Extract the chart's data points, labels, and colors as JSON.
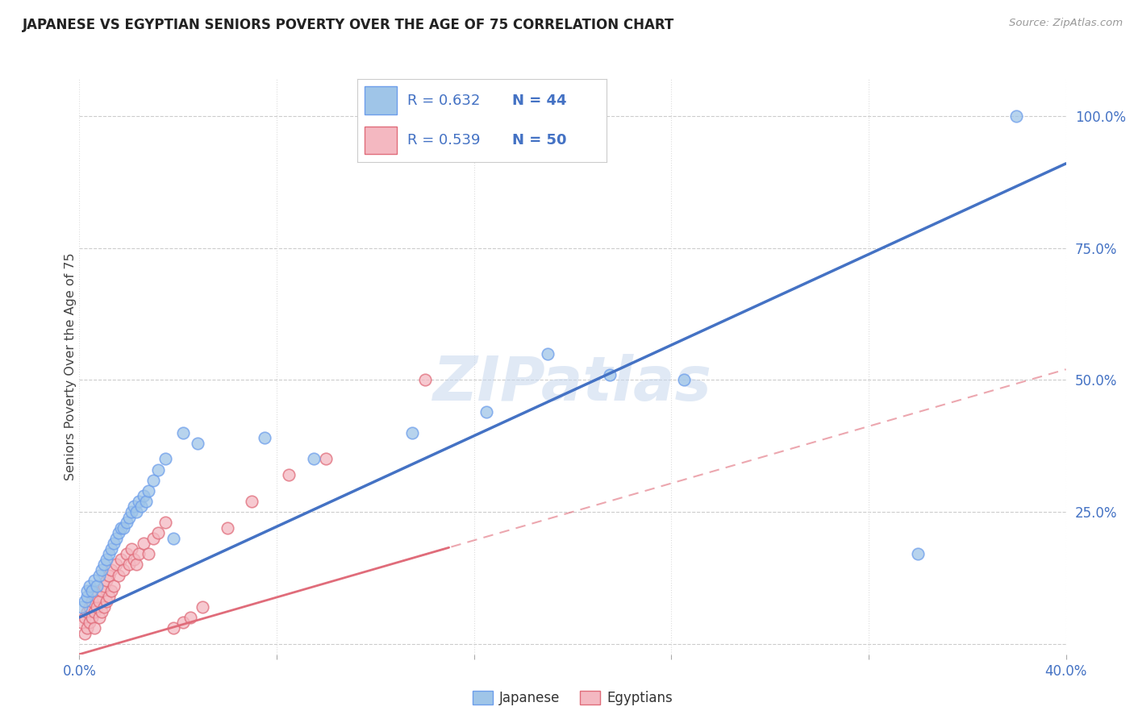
{
  "title": "JAPANESE VS EGYPTIAN SENIORS POVERTY OVER THE AGE OF 75 CORRELATION CHART",
  "source": "Source: ZipAtlas.com",
  "ylabel": "Seniors Poverty Over the Age of 75",
  "xlim": [
    0.0,
    0.4
  ],
  "ylim": [
    -0.02,
    1.07
  ],
  "xtick_positions": [
    0.0,
    0.08,
    0.16,
    0.24,
    0.32,
    0.4
  ],
  "xtick_labels": [
    "0.0%",
    "",
    "",
    "",
    "",
    "40.0%"
  ],
  "ytick_vals_right": [
    1.0,
    0.75,
    0.5,
    0.25,
    0.0
  ],
  "ytick_labels_right": [
    "100.0%",
    "75.0%",
    "50.0%",
    "25.0%",
    ""
  ],
  "japanese_R": "0.632",
  "japanese_N": "44",
  "egyptian_R": "0.539",
  "egyptian_N": "50",
  "japanese_color": "#9fc5e8",
  "egyptian_color": "#f4b8c1",
  "japanese_edge_color": "#6d9eeb",
  "egyptian_edge_color": "#e06c7a",
  "japanese_line_color": "#4472c4",
  "egyptian_line_color": "#e06c7a",
  "watermark": "ZIPatlas",
  "jp_line_intercept": 0.05,
  "jp_line_slope": 2.15,
  "eg_line_intercept": -0.02,
  "eg_line_slope": 1.35,
  "japanese_x": [
    0.001,
    0.002,
    0.003,
    0.003,
    0.004,
    0.005,
    0.006,
    0.007,
    0.008,
    0.009,
    0.01,
    0.011,
    0.012,
    0.013,
    0.014,
    0.015,
    0.016,
    0.017,
    0.018,
    0.019,
    0.02,
    0.021,
    0.022,
    0.023,
    0.024,
    0.025,
    0.026,
    0.027,
    0.028,
    0.03,
    0.032,
    0.035,
    0.038,
    0.042,
    0.048,
    0.075,
    0.095,
    0.135,
    0.165,
    0.19,
    0.215,
    0.245,
    0.34,
    0.38
  ],
  "japanese_y": [
    0.07,
    0.08,
    0.09,
    0.1,
    0.11,
    0.1,
    0.12,
    0.11,
    0.13,
    0.14,
    0.15,
    0.16,
    0.17,
    0.18,
    0.19,
    0.2,
    0.21,
    0.22,
    0.22,
    0.23,
    0.24,
    0.25,
    0.26,
    0.25,
    0.27,
    0.26,
    0.28,
    0.27,
    0.29,
    0.31,
    0.33,
    0.35,
    0.2,
    0.4,
    0.38,
    0.39,
    0.35,
    0.4,
    0.44,
    0.55,
    0.51,
    0.5,
    0.17,
    1.0
  ],
  "egyptian_x": [
    0.001,
    0.002,
    0.002,
    0.003,
    0.003,
    0.004,
    0.004,
    0.005,
    0.005,
    0.006,
    0.006,
    0.007,
    0.007,
    0.008,
    0.008,
    0.009,
    0.009,
    0.01,
    0.01,
    0.011,
    0.011,
    0.012,
    0.012,
    0.013,
    0.013,
    0.014,
    0.015,
    0.016,
    0.017,
    0.018,
    0.019,
    0.02,
    0.021,
    0.022,
    0.023,
    0.024,
    0.026,
    0.028,
    0.03,
    0.032,
    0.035,
    0.038,
    0.042,
    0.045,
    0.05,
    0.06,
    0.07,
    0.085,
    0.1,
    0.14
  ],
  "egyptian_y": [
    0.04,
    0.02,
    0.05,
    0.03,
    0.06,
    0.04,
    0.07,
    0.05,
    0.08,
    0.03,
    0.06,
    0.07,
    0.09,
    0.05,
    0.08,
    0.06,
    0.1,
    0.07,
    0.11,
    0.08,
    0.12,
    0.09,
    0.13,
    0.1,
    0.14,
    0.11,
    0.15,
    0.13,
    0.16,
    0.14,
    0.17,
    0.15,
    0.18,
    0.16,
    0.15,
    0.17,
    0.19,
    0.17,
    0.2,
    0.21,
    0.23,
    0.03,
    0.04,
    0.05,
    0.07,
    0.22,
    0.27,
    0.32,
    0.35,
    0.5
  ]
}
